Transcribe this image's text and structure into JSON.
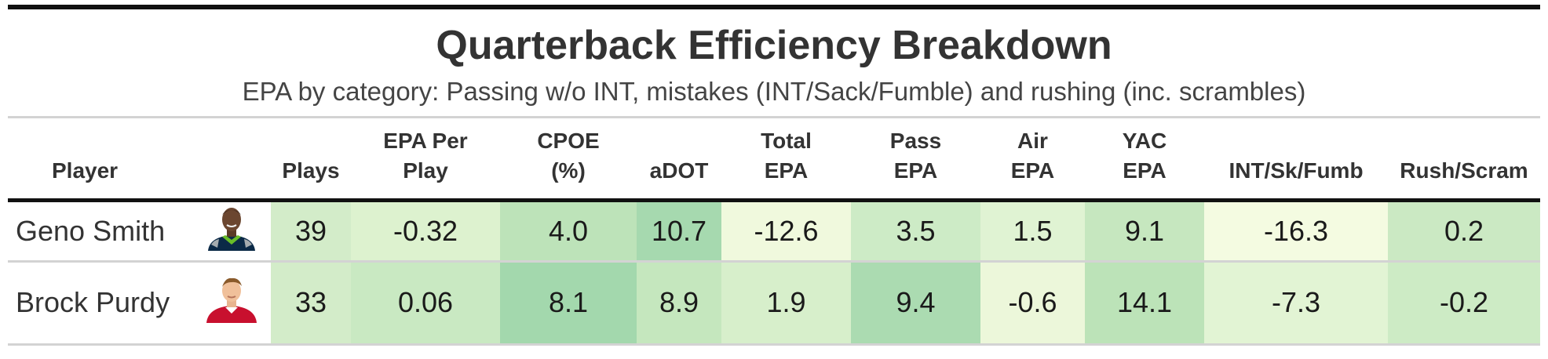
{
  "header": {
    "title": "Quarterback Efficiency Breakdown",
    "subtitle": "EPA by category: Passing w/o INT, mistakes (INT/Sack/Fumble) and rushing (inc. scrambles)"
  },
  "columns": {
    "player": "Player",
    "plays": "Plays",
    "epa_per_play_l1": "EPA Per",
    "epa_per_play_l2": "Play",
    "cpoe_l1": "CPOE",
    "cpoe_l2": "(%)",
    "adot": "aDOT",
    "total_epa_l1": "Total",
    "total_epa_l2": "EPA",
    "pass_epa_l1": "Pass",
    "pass_epa_l2": "EPA",
    "air_epa_l1": "Air",
    "air_epa_l2": "EPA",
    "yac_epa_l1": "YAC",
    "yac_epa_l2": "EPA",
    "int_sk_fumb": "INT/Sk/Fumb",
    "rush_scram": "Rush/Scram"
  },
  "rows": [
    {
      "player": "Geno Smith",
      "headshot": "player-headshot-seahawks",
      "plays": "39",
      "epa_per_play": "-0.32",
      "cpoe": "4.0",
      "adot": "10.7",
      "total_epa": "-12.6",
      "pass_epa": "3.5",
      "air_epa": "1.5",
      "yac_epa": "9.1",
      "int_sk_fumb": "-16.3",
      "rush_scram": "0.2"
    },
    {
      "player": "Brock Purdy",
      "headshot": "player-headshot-49ers",
      "plays": "33",
      "epa_per_play": "0.06",
      "cpoe": "8.1",
      "adot": "8.9",
      "total_epa": "1.9",
      "pass_epa": "9.4",
      "air_epa": "-0.6",
      "yac_epa": "14.1",
      "int_sk_fumb": "-7.3",
      "rush_scram": "-0.2"
    }
  ],
  "colors": {
    "r0": {
      "plays": "#d3ecc9",
      "epa_per_play": "#ddf2cf",
      "cpoe": "#bde3b9",
      "adot": "#a6d9af",
      "total_epa": "#f0f9dd",
      "pass_epa": "#cdebc6",
      "air_epa": "#e0f3d3",
      "yac_epa": "#c6e7bf",
      "int_sk_fumb": "#f4fbe1",
      "rush_scram": "#cbe9c3"
    },
    "r1": {
      "plays": "#d3ecc9",
      "epa_per_play": "#c9e9c2",
      "cpoe": "#a3d8ad",
      "adot": "#c5e7be",
      "total_epa": "#d7efcb",
      "pass_epa": "#abdbb1",
      "air_epa": "#ecf7da",
      "yac_epa": "#bce3b8",
      "int_sk_fumb": "#e2f4d4",
      "rush_scram": "#cdebc5"
    }
  }
}
